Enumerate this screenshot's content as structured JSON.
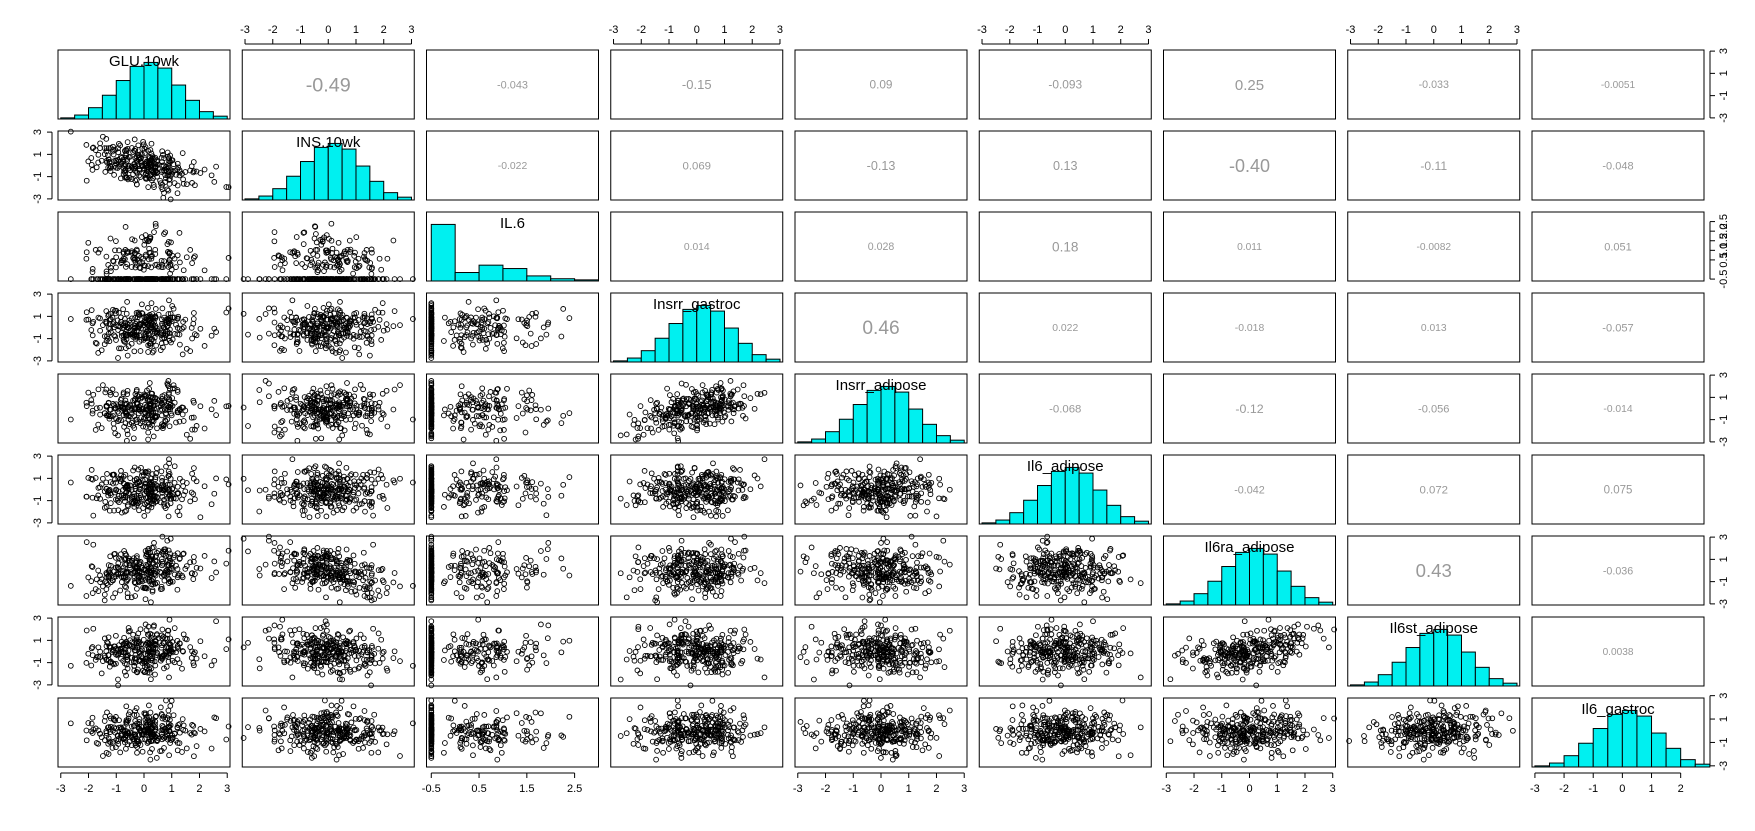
{
  "chart_data": {
    "type": "scatter-matrix",
    "title": "",
    "variables": [
      "GLU.10wk",
      "INS.10wk",
      "IL.6",
      "Insrr_gastroc",
      "Insrr_adipose",
      "Il6_adipose",
      "Il6ra_adipose",
      "Il6st_adipose",
      "Il6_gastroc"
    ],
    "correlations": [
      [
        "",
        "-0.49",
        "-0.043",
        "-0.15",
        "0.09",
        "-0.093",
        "0.25",
        "-0.033",
        "-0.0051"
      ],
      [
        "",
        "",
        "-0.022",
        "0.069",
        "-0.13",
        "0.13",
        "-0.40",
        "-0.11",
        "-0.048"
      ],
      [
        "",
        "",
        "",
        "0.014",
        "0.028",
        "0.18",
        "0.011",
        "-0.0082",
        "0.051"
      ],
      [
        "",
        "",
        "",
        "",
        "0.46",
        "0.022",
        "-0.018",
        "0.013",
        "-0.057"
      ],
      [
        "",
        "",
        "",
        "",
        "",
        "-0.068",
        "-0.12",
        "-0.056",
        "-0.014"
      ],
      [
        "",
        "",
        "",
        "",
        "",
        "",
        "-0.042",
        "0.072",
        "0.075"
      ],
      [
        "",
        "",
        "",
        "",
        "",
        "",
        "",
        "0.43",
        "-0.036"
      ],
      [
        "",
        "",
        "",
        "",
        "",
        "",
        "",
        "",
        "0.0038"
      ],
      [
        "",
        "",
        "",
        "",
        "",
        "",
        "",
        "",
        ""
      ]
    ],
    "axis_ticks": {
      "standard": [
        "-3",
        "-2",
        "-1",
        "0",
        "1",
        "2",
        "3"
      ],
      "standard_right_side": [
        "-3",
        "-1",
        "1",
        "3"
      ],
      "il6_bottom": [
        "-0.5",
        "0.5",
        "1.5",
        "2.5"
      ],
      "il6_right_side": [
        "-0.5",
        "0.5",
        "1.0",
        "1.5",
        "2.0",
        "2.5"
      ],
      "il6_gastroc_bottom": [
        "-3",
        "-2",
        "-1",
        "0",
        "1",
        "2"
      ]
    },
    "axis_ranges": {
      "standard": [
        -3.1,
        3.1
      ],
      "IL.6": [
        -0.6,
        3.0
      ],
      "Il6_gastroc": [
        -3.1,
        2.8
      ]
    },
    "histograms": {
      "bins": [
        -3,
        -2.5,
        -2,
        -1.5,
        -1,
        -0.5,
        0,
        0.5,
        1,
        1.5,
        2,
        2.5,
        3
      ],
      "normal_relative_heights": [
        0.02,
        0.07,
        0.2,
        0.42,
        0.68,
        0.93,
        1.0,
        0.9,
        0.6,
        0.33,
        0.13,
        0.05
      ],
      "il6_bins": [
        -0.5,
        0,
        0.5,
        1,
        1.5,
        2,
        2.5,
        3
      ],
      "il6_relative_heights": [
        1.0,
        0.15,
        0.28,
        0.22,
        0.09,
        0.04,
        0.02
      ]
    },
    "point_count": 300,
    "colors": {
      "histogram_fill": "#00f0f0",
      "correlation_text": "#999999",
      "points": "#000000"
    },
    "grid": false,
    "legend": "none"
  }
}
